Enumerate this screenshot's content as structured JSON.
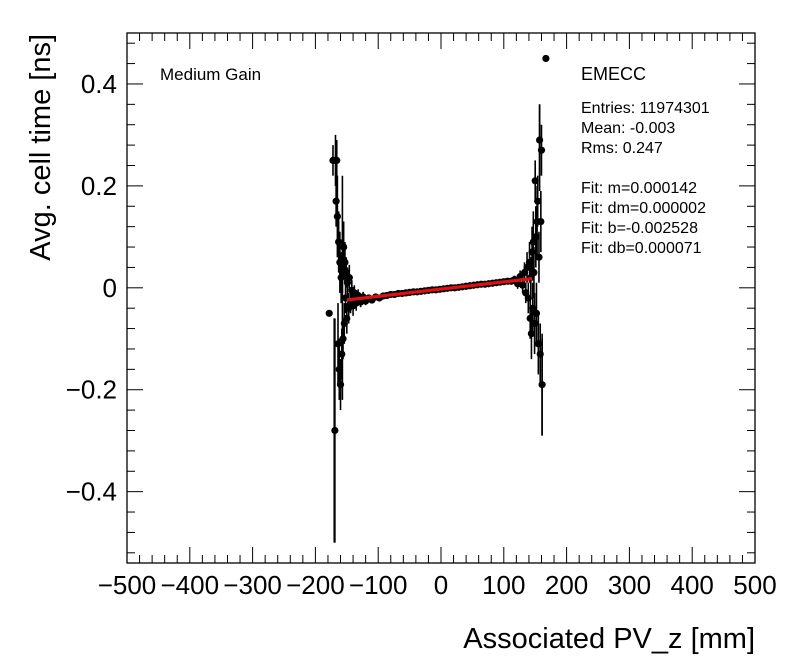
{
  "chart_data": {
    "type": "scatter",
    "title": "",
    "xlabel": "Associated PV_z [mm]",
    "ylabel": "Avg. cell time [ns]",
    "xlim": [
      -500,
      500
    ],
    "ylim": [
      -0.54,
      0.5
    ],
    "x_ticks": [
      -500,
      -400,
      -300,
      -200,
      -100,
      0,
      100,
      200,
      300,
      400,
      500
    ],
    "x_tick_labels": [
      "−500",
      "−400",
      "−300",
      "−200",
      "−100",
      "0",
      "100",
      "200",
      "300",
      "400",
      "500"
    ],
    "y_ticks": [
      -0.4,
      -0.2,
      0,
      0.2,
      0.4
    ],
    "y_tick_labels": [
      "−0.4",
      "−0.2",
      "0",
      "0.2",
      "0.4"
    ],
    "gain_label": "Medium Gain",
    "stats": {
      "name": "EMECC",
      "lines": [
        "Entries: 11974301",
        "Mean: -0.003",
        "Rms: 0.247",
        "",
        "Fit: m=0.000142",
        "Fit: dm=0.000002",
        "Fit: b=-0.002528",
        "Fit: db=0.000071"
      ]
    },
    "fit": {
      "m": 0.000142,
      "b": -0.002528,
      "x_range": [
        -150,
        145
      ],
      "color": "#e01010"
    },
    "points": [
      {
        "x": -178,
        "y": -0.05,
        "err": 0.0
      },
      {
        "x": -172,
        "y": 0.25,
        "err": 0.03
      },
      {
        "x": -169,
        "y": -0.28,
        "err": 0.22
      },
      {
        "x": -168,
        "y": 0.25,
        "err": 0.05
      },
      {
        "x": -167,
        "y": 0.17,
        "err": 0.05
      },
      {
        "x": -166,
        "y": 0.25,
        "err": 0.04
      },
      {
        "x": -165,
        "y": 0.14,
        "err": 0.08
      },
      {
        "x": -164,
        "y": -0.11,
        "err": 0.08
      },
      {
        "x": -163,
        "y": 0.09,
        "err": 0.06
      },
      {
        "x": -162,
        "y": -0.16,
        "err": 0.06
      },
      {
        "x": -161,
        "y": 0.05,
        "err": 0.06
      },
      {
        "x": -160,
        "y": -0.19,
        "err": 0.05
      },
      {
        "x": -159,
        "y": 0.02,
        "err": 0.05
      },
      {
        "x": -158,
        "y": -0.13,
        "err": 0.05
      },
      {
        "x": -157,
        "y": 0.03,
        "err": 0.04
      },
      {
        "x": -156,
        "y": -0.1,
        "err": 0.04
      },
      {
        "x": -155,
        "y": 0.08,
        "err": 0.05
      },
      {
        "x": -154,
        "y": -0.07,
        "err": 0.04
      },
      {
        "x": -153,
        "y": 0.05,
        "err": 0.04
      },
      {
        "x": -152,
        "y": -0.02,
        "err": 0.03
      },
      {
        "x": -151,
        "y": 0.03,
        "err": 0.03
      },
      {
        "x": -150,
        "y": -0.06,
        "err": 0.03
      },
      {
        "x": -149,
        "y": 0.01,
        "err": 0.03
      },
      {
        "x": -147,
        "y": -0.04,
        "err": 0.03
      },
      {
        "x": -146,
        "y": 0.02,
        "err": 0.025
      },
      {
        "x": -144,
        "y": -0.03,
        "err": 0.02
      },
      {
        "x": -142,
        "y": -0.005,
        "err": 0.02
      },
      {
        "x": -140,
        "y": -0.035,
        "err": 0.02
      },
      {
        "x": -138,
        "y": -0.01,
        "err": 0.015
      },
      {
        "x": -135,
        "y": -0.03,
        "err": 0.015
      },
      {
        "x": -132,
        "y": -0.015,
        "err": 0.012
      },
      {
        "x": -128,
        "y": -0.028,
        "err": 0.01
      },
      {
        "x": -124,
        "y": -0.018,
        "err": 0.01
      },
      {
        "x": -120,
        "y": -0.026,
        "err": 0.008
      },
      {
        "x": -115,
        "y": -0.02,
        "err": 0.007
      },
      {
        "x": -110,
        "y": -0.024,
        "err": 0.006
      },
      {
        "x": -104,
        "y": -0.018,
        "err": 0.006
      },
      {
        "x": -98,
        "y": -0.02,
        "err": 0.005
      },
      {
        "x": -92,
        "y": -0.016,
        "err": 0.005
      },
      {
        "x": -86,
        "y": -0.015,
        "err": 0.004
      },
      {
        "x": -80,
        "y": -0.013,
        "err": 0.004
      },
      {
        "x": -74,
        "y": -0.013,
        "err": 0.004
      },
      {
        "x": -68,
        "y": -0.011,
        "err": 0.004
      },
      {
        "x": -62,
        "y": -0.011,
        "err": 0.004
      },
      {
        "x": -56,
        "y": -0.01,
        "err": 0.004
      },
      {
        "x": -50,
        "y": -0.009,
        "err": 0.004
      },
      {
        "x": -44,
        "y": -0.008,
        "err": 0.004
      },
      {
        "x": -38,
        "y": -0.008,
        "err": 0.004
      },
      {
        "x": -32,
        "y": -0.007,
        "err": 0.004
      },
      {
        "x": -26,
        "y": -0.006,
        "err": 0.004
      },
      {
        "x": -20,
        "y": -0.005,
        "err": 0.004
      },
      {
        "x": -14,
        "y": -0.004,
        "err": 0.004
      },
      {
        "x": -8,
        "y": -0.004,
        "err": 0.004
      },
      {
        "x": -2,
        "y": -0.003,
        "err": 0.004
      },
      {
        "x": 4,
        "y": -0.002,
        "err": 0.004
      },
      {
        "x": 10,
        "y": -0.001,
        "err": 0.004
      },
      {
        "x": 16,
        "y": 0.0,
        "err": 0.004
      },
      {
        "x": 22,
        "y": 0.0,
        "err": 0.004
      },
      {
        "x": 28,
        "y": 0.001,
        "err": 0.004
      },
      {
        "x": 34,
        "y": 0.002,
        "err": 0.004
      },
      {
        "x": 40,
        "y": 0.003,
        "err": 0.004
      },
      {
        "x": 46,
        "y": 0.004,
        "err": 0.004
      },
      {
        "x": 52,
        "y": 0.005,
        "err": 0.004
      },
      {
        "x": 58,
        "y": 0.006,
        "err": 0.004
      },
      {
        "x": 64,
        "y": 0.007,
        "err": 0.004
      },
      {
        "x": 70,
        "y": 0.007,
        "err": 0.004
      },
      {
        "x": 76,
        "y": 0.008,
        "err": 0.004
      },
      {
        "x": 82,
        "y": 0.009,
        "err": 0.004
      },
      {
        "x": 88,
        "y": 0.01,
        "err": 0.005
      },
      {
        "x": 94,
        "y": 0.011,
        "err": 0.005
      },
      {
        "x": 100,
        "y": 0.012,
        "err": 0.006
      },
      {
        "x": 106,
        "y": 0.013,
        "err": 0.006
      },
      {
        "x": 112,
        "y": 0.013,
        "err": 0.007
      },
      {
        "x": 117,
        "y": 0.016,
        "err": 0.008
      },
      {
        "x": 122,
        "y": 0.008,
        "err": 0.01
      },
      {
        "x": 126,
        "y": 0.022,
        "err": 0.012
      },
      {
        "x": 130,
        "y": 0.005,
        "err": 0.015
      },
      {
        "x": 133,
        "y": 0.03,
        "err": 0.02
      },
      {
        "x": 135,
        "y": -0.01,
        "err": 0.02
      },
      {
        "x": 137,
        "y": 0.04,
        "err": 0.03
      },
      {
        "x": 139,
        "y": -0.02,
        "err": 0.03
      },
      {
        "x": 141,
        "y": 0.05,
        "err": 0.04
      },
      {
        "x": 142,
        "y": -0.06,
        "err": 0.04
      },
      {
        "x": 143,
        "y": 0.02,
        "err": 0.04
      },
      {
        "x": 144,
        "y": -0.09,
        "err": 0.05
      },
      {
        "x": 145,
        "y": 0.07,
        "err": 0.05
      },
      {
        "x": 146,
        "y": -0.04,
        "err": 0.05
      },
      {
        "x": 147,
        "y": 0.09,
        "err": 0.06
      },
      {
        "x": 148,
        "y": 0.03,
        "err": 0.05
      },
      {
        "x": 149,
        "y": -0.07,
        "err": 0.06
      },
      {
        "x": 150,
        "y": 0.21,
        "err": 0.04
      },
      {
        "x": 151,
        "y": 0.1,
        "err": 0.06
      },
      {
        "x": 152,
        "y": -0.05,
        "err": 0.06
      },
      {
        "x": 153,
        "y": 0.13,
        "err": 0.07
      },
      {
        "x": 154,
        "y": 0.17,
        "err": 0.05
      },
      {
        "x": 155,
        "y": -0.11,
        "err": 0.06
      },
      {
        "x": 156,
        "y": 0.06,
        "err": 0.05
      },
      {
        "x": 157,
        "y": 0.29,
        "err": 0.07
      },
      {
        "x": 158,
        "y": -0.13,
        "err": 0.06
      },
      {
        "x": 159,
        "y": 0.13,
        "err": 0.06
      },
      {
        "x": 160,
        "y": 0.27,
        "err": 0.05
      },
      {
        "x": 161,
        "y": -0.19,
        "err": 0.1
      },
      {
        "x": 167,
        "y": 0.45,
        "err": 0.0
      }
    ]
  }
}
